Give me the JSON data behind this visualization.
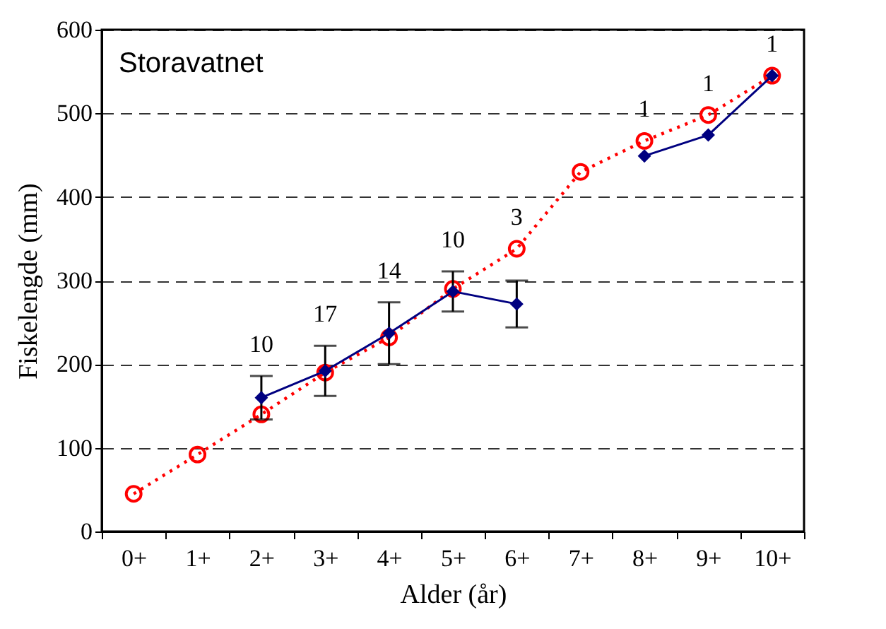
{
  "chart_data": {
    "type": "line",
    "xlabel": "Alder (år)",
    "ylabel": "Fiskelengde (mm)",
    "categories": [
      "0+",
      "1+",
      "2+",
      "3+",
      "4+",
      "5+",
      "6+",
      "7+",
      "8+",
      "9+",
      "10+"
    ],
    "ylim": [
      0,
      600
    ],
    "yticks": [
      0,
      100,
      200,
      300,
      400,
      500,
      600
    ],
    "grid": "y",
    "series": [
      {
        "color": "#ff0000",
        "marker": "circle",
        "line_style": "dotted",
        "values": [
          45,
          92,
          140,
          190,
          232,
          290,
          338,
          430,
          467,
          498,
          545
        ]
      },
      {
        "color": "#000080",
        "marker": "diamond",
        "line_style": "solid",
        "values": [
          null,
          null,
          160,
          192,
          237,
          287,
          272,
          null,
          449,
          474,
          545
        ],
        "errors": [
          null,
          null,
          26,
          30,
          37,
          24,
          28,
          null,
          null,
          null,
          null
        ]
      }
    ],
    "annotations": [
      "Storavatnet",
      {
        "text": "10",
        "x": "2+",
        "y": 160
      },
      {
        "text": "17",
        "x": "3+",
        "y": 192
      },
      {
        "text": "14",
        "x": "4+",
        "y": 237
      },
      {
        "text": "10",
        "x": "5+",
        "y": 287
      },
      {
        "text": "3",
        "x": "6+",
        "y": 338
      },
      {
        "text": "1",
        "x": "8+",
        "y": 467
      },
      {
        "text": "1",
        "x": "9+",
        "y": 498
      },
      {
        "text": "1",
        "x": "10+",
        "y": 545
      }
    ]
  }
}
